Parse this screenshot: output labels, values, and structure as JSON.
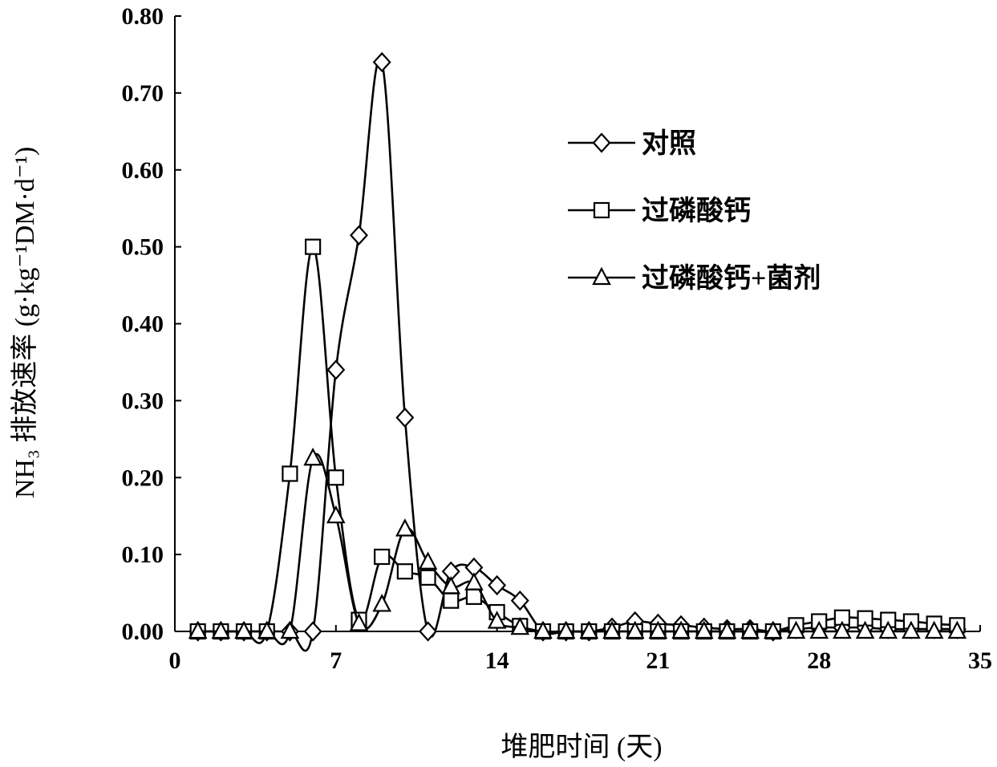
{
  "chart_data": {
    "type": "line",
    "title": "",
    "xlabel": "堆肥时间 (天)",
    "ylabel": "NH₃ 排放速率 (g·kg⁻¹DM·d⁻¹)",
    "xlim": [
      0,
      35
    ],
    "ylim": [
      0,
      0.8
    ],
    "x_ticks": [
      "0",
      "7",
      "14",
      "21",
      "28",
      "35"
    ],
    "y_ticks": [
      "0.00",
      "0.10",
      "0.20",
      "0.30",
      "0.40",
      "0.50",
      "0.60",
      "0.70",
      "0.80"
    ],
    "grid": false,
    "legend_position": "right",
    "colors": {
      "line": "#000000",
      "marker_fill": "#ffffff"
    },
    "x": [
      1,
      2,
      3,
      4,
      5,
      6,
      7,
      8,
      9,
      10,
      11,
      12,
      13,
      14,
      15,
      16,
      17,
      18,
      19,
      20,
      21,
      22,
      23,
      24,
      25,
      26,
      27,
      28,
      29,
      30,
      31,
      32,
      33,
      34
    ],
    "series": [
      {
        "name": "对照",
        "marker": "diamond",
        "values": [
          0,
          0,
          0,
          0,
          0,
          0,
          0.34,
          0.515,
          0.74,
          0.278,
          0,
          0.078,
          0.083,
          0.06,
          0.04,
          0,
          0,
          0,
          0.005,
          0.013,
          0.01,
          0.008,
          0.005,
          0.003,
          0.003,
          0,
          0.003,
          0.005,
          0.005,
          0.005,
          0.003,
          0.003,
          0.003,
          0.003
        ]
      },
      {
        "name": "过磷酸钙",
        "marker": "square",
        "values": [
          0,
          0,
          0,
          0,
          0.205,
          0.5,
          0.2,
          0.015,
          0.097,
          0.078,
          0.07,
          0.04,
          0.045,
          0.025,
          0.007,
          0,
          0,
          0,
          0,
          0,
          0,
          0,
          0,
          0,
          0,
          0,
          0.008,
          0.013,
          0.018,
          0.017,
          0.015,
          0.013,
          0.01,
          0.008
        ]
      },
      {
        "name": "过磷酸钙+菌剂",
        "marker": "triangle",
        "values": [
          0,
          0,
          0,
          0,
          0,
          0.225,
          0.15,
          0.01,
          0.035,
          0.133,
          0.09,
          0.058,
          0.063,
          0.013,
          0.005,
          0,
          0,
          0,
          0,
          0,
          0,
          0,
          0,
          0,
          0,
          0,
          0,
          0,
          0,
          0,
          0,
          0,
          0,
          0
        ]
      }
    ]
  }
}
